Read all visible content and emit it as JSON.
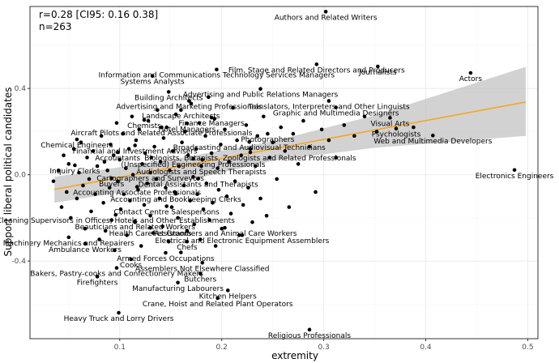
{
  "annotation": {
    "line1": "r=0.28 [CI95: 0.16 0.38]",
    "line2": "n=263"
  },
  "colors": {
    "grid": "#ebebeb",
    "border": "#333333",
    "point": "#000000",
    "fit": "#f5a623",
    "band": "#bfbfbf"
  },
  "chart_data": {
    "type": "scatter",
    "title": "",
    "xlabel": "extremity",
    "ylabel": "Support liberal political candidates",
    "xlim": [
      0.012,
      0.51
    ],
    "ylim": [
      -0.76,
      0.78
    ],
    "x_ticks": [
      0.1,
      0.2,
      0.3,
      0.4,
      0.5
    ],
    "y_ticks": [
      -0.4,
      0.0,
      0.4
    ],
    "x_tick_labels": [
      "0.1",
      "0.2",
      "0.3",
      "0.4",
      "0.5"
    ],
    "y_tick_labels": [
      "-0.4",
      "0.0",
      "0.4"
    ],
    "grid": true,
    "fit": {
      "line": [
        [
          0.036,
          -0.068
        ],
        [
          0.498,
          0.337
        ]
      ],
      "band_upper": [
        [
          0.036,
          -0.01
        ],
        [
          0.15,
          0.07
        ],
        [
          0.25,
          0.155
        ],
        [
          0.35,
          0.275
        ],
        [
          0.498,
          0.5
        ]
      ],
      "band_lower": [
        [
          0.036,
          -0.13
        ],
        [
          0.15,
          -0.045
        ],
        [
          0.25,
          0.065
        ],
        [
          0.35,
          0.125
        ],
        [
          0.498,
          0.18
        ]
      ]
    },
    "labeled_points": [
      {
        "x": 0.302,
        "y": 0.756,
        "label": "Authors and Related Writers"
      },
      {
        "x": 0.293,
        "y": 0.512,
        "label": "Film, Stage and Related Directors and Producers"
      },
      {
        "x": 0.353,
        "y": 0.502,
        "label": "Journalists"
      },
      {
        "x": 0.444,
        "y": 0.472,
        "label": "Actors"
      },
      {
        "x": 0.195,
        "y": 0.488,
        "label": "Information and Communications Technology Services Managers"
      },
      {
        "x": 0.132,
        "y": 0.458,
        "label": "Systems Analysts"
      },
      {
        "x": 0.238,
        "y": 0.398,
        "label": "Advertising and Public Relations Managers"
      },
      {
        "x": 0.148,
        "y": 0.384,
        "label": "Building Architects"
      },
      {
        "x": 0.305,
        "y": 0.342,
        "label": "Translators, Interpreters and Other Linguists"
      },
      {
        "x": 0.168,
        "y": 0.342,
        "label": "Advertising and Marketing Professionals"
      },
      {
        "x": 0.312,
        "y": 0.312,
        "label": "Graphic and Multimedia Designers"
      },
      {
        "x": 0.16,
        "y": 0.3,
        "label": "Landscape Architects"
      },
      {
        "x": 0.19,
        "y": 0.265,
        "label": "Finance Managers"
      },
      {
        "x": 0.124,
        "y": 0.254,
        "label": "Chemists"
      },
      {
        "x": 0.166,
        "y": 0.238,
        "label": "Hotel Managers"
      },
      {
        "x": 0.365,
        "y": 0.264,
        "label": "Visual Arts"
      },
      {
        "x": 0.141,
        "y": 0.22,
        "label": "Aircraft Pilots and Related Associate Professionals"
      },
      {
        "x": 0.371,
        "y": 0.214,
        "label": "Psychologists"
      },
      {
        "x": 0.245,
        "y": 0.19,
        "label": "Photographers"
      },
      {
        "x": 0.407,
        "y": 0.182,
        "label": "Web and Multimedia Developers"
      },
      {
        "x": 0.058,
        "y": 0.164,
        "label": "Chemical Engineers"
      },
      {
        "x": 0.227,
        "y": 0.152,
        "label": "Broadcasting and Audiovisual Technicians"
      },
      {
        "x": 0.115,
        "y": 0.136,
        "label": "Financial and Investment Advisers"
      },
      {
        "x": 0.098,
        "y": 0.104,
        "label": "Accountants"
      },
      {
        "x": 0.228,
        "y": 0.104,
        "label": "Biologists, Botanists, Zoologists and Related Professionals"
      },
      {
        "x": 0.172,
        "y": 0.074,
        "label": "(Unspecified) Engineering Professionals"
      },
      {
        "x": 0.056,
        "y": 0.044,
        "label": "Inquiry Clerks"
      },
      {
        "x": 0.18,
        "y": 0.04,
        "label": "Audiologists and Speech Therapists"
      },
      {
        "x": 0.487,
        "y": 0.022,
        "label": "Electronics Engineers"
      },
      {
        "x": 0.13,
        "y": 0.01,
        "label": "Cartographers and Surveyors"
      },
      {
        "x": 0.092,
        "y": -0.016,
        "label": "Buyers"
      },
      {
        "x": 0.177,
        "y": -0.018,
        "label": "Dental Assistants and Therapists"
      },
      {
        "x": 0.117,
        "y": -0.056,
        "label": "Accounting Associate Professionals"
      },
      {
        "x": 0.155,
        "y": -0.088,
        "label": "Accounting and Bookkeeping Clerks"
      },
      {
        "x": 0.146,
        "y": -0.146,
        "label": "Contact Centre Salespersons"
      },
      {
        "x": 0.096,
        "y": -0.186,
        "label": "Cleaning Supervisors in Offices, Hotels and Other Establishments"
      },
      {
        "x": 0.115,
        "y": -0.216,
        "label": "Beauticians and Related Workers"
      },
      {
        "x": 0.13,
        "y": -0.246,
        "label": "Health Care Assistants"
      },
      {
        "x": 0.203,
        "y": -0.246,
        "label": "Pet Groomers and Animal Care Workers"
      },
      {
        "x": 0.22,
        "y": -0.28,
        "label": "Electrical and Electronic Equipment Assemblers"
      },
      {
        "x": 0.05,
        "y": -0.29,
        "label": "Machinery Mechanics and Repairers"
      },
      {
        "x": 0.066,
        "y": -0.32,
        "label": "Ambulance Workers"
      },
      {
        "x": 0.166,
        "y": -0.31,
        "label": "Chefs"
      },
      {
        "x": 0.145,
        "y": -0.362,
        "label": "Armed Forces Occupations"
      },
      {
        "x": 0.111,
        "y": -0.392,
        "label": "Cooks"
      },
      {
        "x": 0.181,
        "y": -0.408,
        "label": "Assemblers Not Elsewhere Classified"
      },
      {
        "x": 0.097,
        "y": -0.432,
        "label": "Bakers, Pastry-cooks and Confectionery Makers"
      },
      {
        "x": 0.179,
        "y": -0.458,
        "label": "Butchers"
      },
      {
        "x": 0.078,
        "y": -0.472,
        "label": "Firefighters"
      },
      {
        "x": 0.157,
        "y": -0.5,
        "label": "Manufacturing Labourers"
      },
      {
        "x": 0.206,
        "y": -0.536,
        "label": "Kitchen Helpers"
      },
      {
        "x": 0.196,
        "y": -0.572,
        "label": "Crane, Hoist and Related Plant Operators"
      },
      {
        "x": 0.099,
        "y": -0.64,
        "label": "Heavy Truck and Lorry Drivers"
      },
      {
        "x": 0.286,
        "y": -0.718,
        "label": "Religious Professionals"
      }
    ],
    "unlabeled_points": [
      [
        0.035,
        -0.03
      ],
      [
        0.04,
        0.02
      ],
      [
        0.043,
        -0.15
      ],
      [
        0.045,
        0.09
      ],
      [
        0.048,
        -0.08
      ],
      [
        0.05,
        0.05
      ],
      [
        0.052,
        -0.2
      ],
      [
        0.055,
        0.12
      ],
      [
        0.058,
        -0.11
      ],
      [
        0.06,
        0.01
      ],
      [
        0.062,
        0.15
      ],
      [
        0.064,
        -0.05
      ],
      [
        0.066,
        -0.25
      ],
      [
        0.068,
        0.08
      ],
      [
        0.07,
        -0.02
      ],
      [
        0.072,
        -0.17
      ],
      [
        0.074,
        0.11
      ],
      [
        0.076,
        -0.09
      ],
      [
        0.078,
        0.04
      ],
      [
        0.08,
        -0.3
      ],
      [
        0.082,
        0.18
      ],
      [
        0.084,
        -0.13
      ],
      [
        0.085,
        0.06
      ],
      [
        0.086,
        -0.26
      ],
      [
        0.088,
        0.02
      ],
      [
        0.09,
        -0.06
      ],
      [
        0.091,
        0.14
      ],
      [
        0.092,
        -0.21
      ],
      [
        0.094,
        0.09
      ],
      [
        0.095,
        -0.35
      ],
      [
        0.097,
        0.24
      ],
      [
        0.098,
        -0.03
      ],
      [
        0.1,
        0.07
      ],
      [
        0.101,
        -0.16
      ],
      [
        0.103,
        0.19
      ],
      [
        0.104,
        -0.09
      ],
      [
        0.106,
        0.03
      ],
      [
        0.107,
        -0.28
      ],
      [
        0.109,
        0.12
      ],
      [
        0.11,
        -0.12
      ],
      [
        0.112,
        0.27
      ],
      [
        0.113,
        0.0
      ],
      [
        0.115,
        -0.22
      ],
      [
        0.116,
        0.16
      ],
      [
        0.118,
        -0.07
      ],
      [
        0.119,
        0.21
      ],
      [
        0.121,
        -0.33
      ],
      [
        0.122,
        0.05
      ],
      [
        0.124,
        -0.14
      ],
      [
        0.125,
        0.1
      ],
      [
        0.127,
        -0.04
      ],
      [
        0.128,
        0.25
      ],
      [
        0.13,
        -0.19
      ],
      [
        0.131,
        0.08
      ],
      [
        0.133,
        -0.27
      ],
      [
        0.134,
        0.13
      ],
      [
        0.136,
        -0.02
      ],
      [
        0.137,
        0.3
      ],
      [
        0.139,
        -0.11
      ],
      [
        0.14,
        0.06
      ],
      [
        0.142,
        -0.24
      ],
      [
        0.143,
        0.17
      ],
      [
        0.145,
        -0.06
      ],
      [
        0.146,
        0.22
      ],
      [
        0.148,
        -0.31
      ],
      [
        0.149,
        0.02
      ],
      [
        0.151,
        -0.15
      ],
      [
        0.152,
        0.11
      ],
      [
        0.154,
        -0.08
      ],
      [
        0.155,
        0.28
      ],
      [
        0.157,
        -0.2
      ],
      [
        0.158,
        0.04
      ],
      [
        0.16,
        -0.36
      ],
      [
        0.161,
        0.15
      ],
      [
        0.163,
        -0.05
      ],
      [
        0.164,
        0.2
      ],
      [
        0.166,
        -0.26
      ],
      [
        0.167,
        0.09
      ],
      [
        0.169,
        -0.12
      ],
      [
        0.17,
        0.33
      ],
      [
        0.172,
        -0.01
      ],
      [
        0.173,
        -0.23
      ],
      [
        0.175,
        0.12
      ],
      [
        0.176,
        -0.09
      ],
      [
        0.178,
        0.24
      ],
      [
        0.179,
        -0.3
      ],
      [
        0.181,
        0.07
      ],
      [
        0.182,
        -0.16
      ],
      [
        0.184,
        0.18
      ],
      [
        0.185,
        -0.04
      ],
      [
        0.187,
        0.36
      ],
      [
        0.188,
        -0.21
      ],
      [
        0.19,
        0.1
      ],
      [
        0.191,
        -0.13
      ],
      [
        0.193,
        0.26
      ],
      [
        0.194,
        -0.33
      ],
      [
        0.196,
        0.03
      ],
      [
        0.197,
        -0.07
      ],
      [
        0.199,
        0.14
      ],
      [
        0.2,
        -0.25
      ],
      [
        0.203,
        0.21
      ],
      [
        0.205,
        -0.1
      ],
      [
        0.207,
        0.06
      ],
      [
        0.209,
        -0.18
      ],
      [
        0.211,
        0.31
      ],
      [
        0.213,
        -0.03
      ],
      [
        0.215,
        0.16
      ],
      [
        0.217,
        -0.28
      ],
      [
        0.219,
        0.09
      ],
      [
        0.221,
        -0.14
      ],
      [
        0.224,
        0.23
      ],
      [
        0.226,
        -0.06
      ],
      [
        0.228,
        0.12
      ],
      [
        0.23,
        -0.22
      ],
      [
        0.233,
        0.04
      ],
      [
        0.235,
        0.18
      ],
      [
        0.238,
        -0.11
      ],
      [
        0.241,
        0.27
      ],
      [
        0.244,
        -0.19
      ],
      [
        0.247,
        0.08
      ],
      [
        0.25,
        0.15
      ],
      [
        0.254,
        -0.02
      ],
      [
        0.258,
        0.22
      ],
      [
        0.262,
        0.11
      ],
      [
        0.266,
        -0.15
      ],
      [
        0.27,
        0.19
      ],
      [
        0.275,
        0.05
      ],
      [
        0.28,
        0.25
      ],
      [
        0.286,
        0.13
      ],
      [
        0.292,
        -0.08
      ],
      [
        0.298,
        0.21
      ],
      [
        0.305,
        0.16
      ],
      [
        0.312,
        0.08
      ],
      [
        0.32,
        0.23
      ],
      [
        0.33,
        0.18
      ],
      [
        0.34,
        0.27
      ],
      [
        0.352,
        0.2
      ],
      [
        0.388,
        0.22
      ]
    ]
  }
}
